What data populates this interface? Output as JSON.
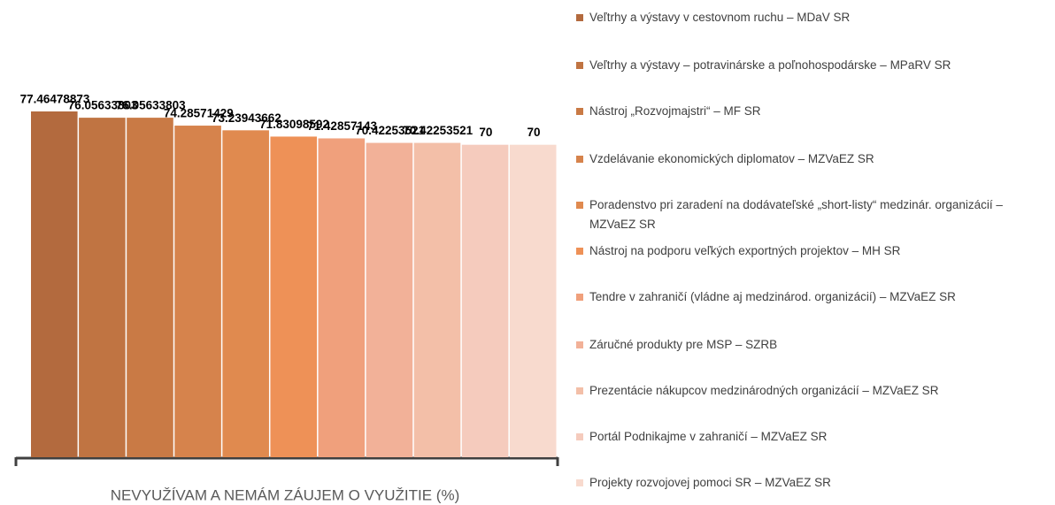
{
  "chart_data": {
    "type": "bar",
    "categories": [
      "NEVYUŽÍVAM A NEMÁM ZÁUJEM O VYUŽITIE (%)"
    ],
    "series": [
      {
        "name": "Veľtrhy a výstavy v cestovnom ruchu – MDaV SR",
        "color": "#b36a3e",
        "values": [
          77.46478873
        ]
      },
      {
        "name": "Veľtrhy a výstavy – potravinárske a poľnohospodárske – MPaRV SR",
        "color": "#c07442",
        "values": [
          76.05633803
        ]
      },
      {
        "name": "Nástroj „Rozvojmajstri“ – MF SR",
        "color": "#c97a45",
        "values": [
          76.05633803
        ]
      },
      {
        "name": "Vzdelávanie ekonomických diplomatov – MZVaEZ SR",
        "color": "#d6834c",
        "values": [
          74.28571429
        ]
      },
      {
        "name": "Poradenstvo pri zaradení na dodávateľské „short-listy“ medzinár. organizácií – MZVaEZ SR",
        "color": "#e08a4f",
        "values": [
          73.23943662
        ]
      },
      {
        "name": "Nástroj na podporu veľkých exportných projektov – MH SR",
        "color": "#ee9157",
        "values": [
          71.83098592
        ]
      },
      {
        "name": "Tendre v zahraničí (vládne aj medzinárod. organizácií) – MZVaEZ SR",
        "color": "#f0a07c",
        "values": [
          71.42857143
        ]
      },
      {
        "name": "Záručné produkty pre MSP – SZRB",
        "color": "#f2b198",
        "values": [
          70.42253521
        ]
      },
      {
        "name": "Prezentácie nákupcov medzinárodných organizácií – MZVaEZ SR",
        "color": "#f3bfa8",
        "values": [
          70.42253521
        ]
      },
      {
        "name": "Portál Podnikajme v zahraničí – MZVaEZ SR",
        "color": "#f5cbbd",
        "values": [
          70
        ]
      },
      {
        "name": "Projekty rozvojovej pomoci SR – MZVaEZ SR",
        "color": "#f8dace",
        "values": [
          70
        ]
      }
    ]
  }
}
